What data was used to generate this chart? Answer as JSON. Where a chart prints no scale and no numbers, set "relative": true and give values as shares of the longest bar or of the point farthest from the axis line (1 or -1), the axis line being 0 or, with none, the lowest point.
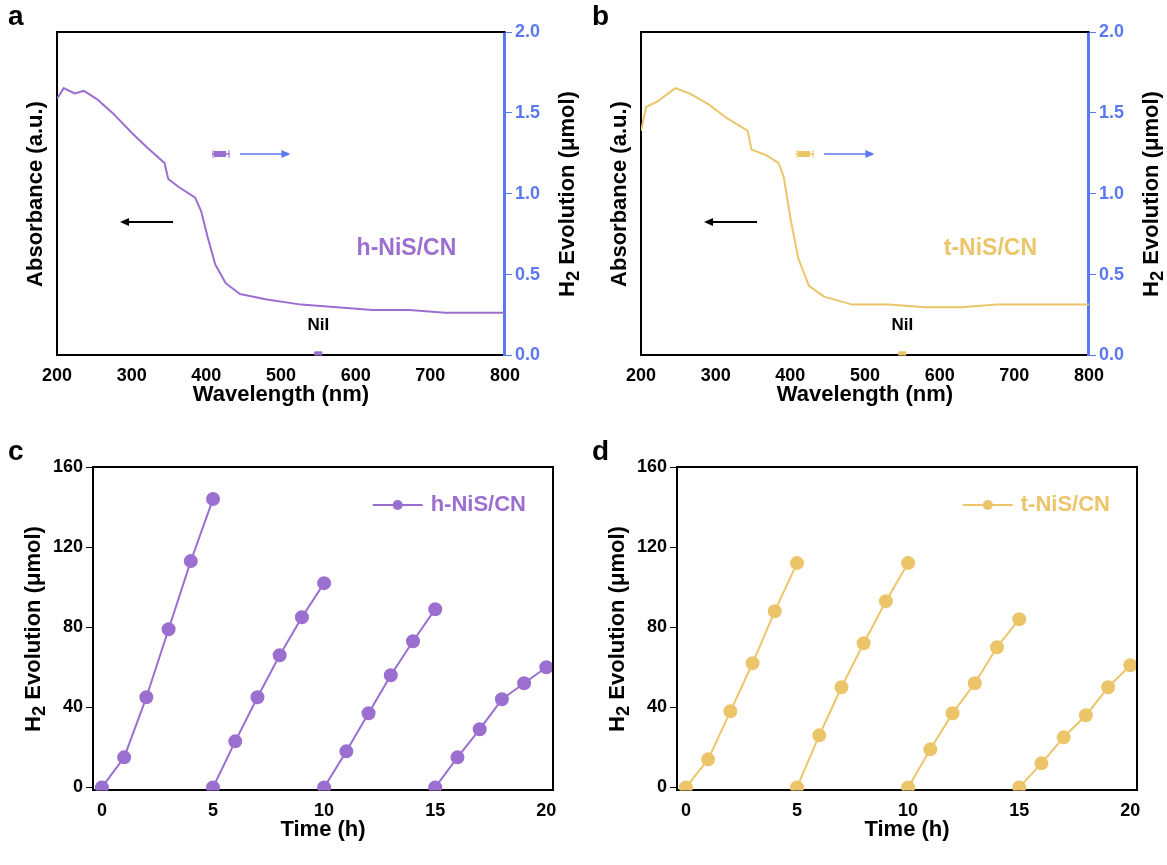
{
  "chart_data": [
    {
      "type": "line",
      "title": "a",
      "xlabel": "Wavelength (nm)",
      "ylabel": "Absorbance (a.u.)",
      "y2label": "H$_{2}$ Evolution (μmol)",
      "relative": true,
      "xlim": [
        200,
        800
      ],
      "xticks": [
        200,
        300,
        400,
        500,
        600,
        700,
        800
      ],
      "y2lim": [
        0,
        2
      ],
      "y2ticks": [
        {
          "value": 0,
          "label": "0.0"
        },
        {
          "value": 0.5,
          "label": "0.5"
        },
        {
          "value": 1,
          "label": "1.0"
        },
        {
          "value": 1.5,
          "label": "1.5"
        },
        {
          "value": 2,
          "label": "2.0"
        }
      ],
      "annotations": [
        {
          "text": "NiI",
          "x": 550,
          "y": 0
        }
      ],
      "series": [
        {
          "name": "h-NiS/CN",
          "color": "#9b6fd0",
          "marker": "none",
          "x": [
            200,
            209,
            224,
            236,
            253,
            277,
            301,
            320,
            344,
            349,
            363,
            385,
            393,
            402,
            412,
            426,
            445,
            479,
            527,
            575,
            623,
            672,
            720,
            800
          ],
          "values": [
            0.96,
            1.0,
            0.98,
            0.99,
            0.96,
            0.9,
            0.83,
            0.78,
            0.72,
            0.66,
            0.63,
            0.59,
            0.54,
            0.44,
            0.34,
            0.27,
            0.23,
            0.21,
            0.19,
            0.18,
            0.17,
            0.17,
            0.16,
            0.16
          ]
        },
        {
          "type": "scatter",
          "axis": "y2",
          "color": "#9b6fd0",
          "marker": "square",
          "x": [
            550
          ],
          "values": [
            0
          ]
        }
      ]
    },
    {
      "type": "line",
      "title": "b",
      "xlabel": "Wavelength (nm)",
      "ylabel": "Absorbance (a.u.)",
      "y2label": "H$_{2}$ Evolution (μmol)",
      "relative": true,
      "xlim": [
        200,
        800
      ],
      "xticks": [
        200,
        300,
        400,
        500,
        600,
        700,
        800
      ],
      "y2lim": [
        0,
        2
      ],
      "y2ticks": [
        {
          "value": 0,
          "label": "0.0"
        },
        {
          "value": 0.5,
          "label": "0.5"
        },
        {
          "value": 1,
          "label": "1.0"
        },
        {
          "value": 1.5,
          "label": "1.5"
        },
        {
          "value": 2,
          "label": "2.0"
        }
      ],
      "annotations": [
        {
          "text": "NiI",
          "x": 550,
          "y": 0
        }
      ],
      "series": [
        {
          "name": "t-NiS/CN",
          "color": "#ecc56a",
          "marker": "none",
          "x": [
            200,
            207,
            222,
            246,
            265,
            290,
            314,
            343,
            348,
            367,
            384,
            391,
            401,
            411,
            425,
            445,
            483,
            532,
            580,
            629,
            677,
            725,
            800
          ],
          "values": [
            0.84,
            0.93,
            0.95,
            1.0,
            0.98,
            0.94,
            0.89,
            0.84,
            0.77,
            0.75,
            0.72,
            0.67,
            0.5,
            0.36,
            0.26,
            0.22,
            0.19,
            0.19,
            0.18,
            0.18,
            0.19,
            0.19,
            0.19
          ]
        },
        {
          "type": "scatter",
          "axis": "y2",
          "color": "#ecc56a",
          "marker": "square",
          "x": [
            550
          ],
          "values": [
            0
          ]
        }
      ]
    },
    {
      "type": "line",
      "title": "c",
      "xlabel": "Time (h)",
      "ylabel": "H$_{2}$ Evolution (μmol)",
      "xlim": [
        -0.4,
        20.3
      ],
      "xticks": [
        0,
        5,
        10,
        15,
        20
      ],
      "ylim": [
        -1.5,
        160
      ],
      "yticks": [
        0,
        40,
        80,
        120,
        160
      ],
      "legend": "top right",
      "marker": "circle",
      "series": [
        {
          "name": "h-NiS/CN",
          "color": "#9b6fd0",
          "x": [
            0,
            1,
            2,
            3,
            4,
            5
          ],
          "values": [
            0,
            15,
            45,
            79,
            113,
            144
          ]
        },
        {
          "color": "#9b6fd0",
          "x": [
            5,
            6,
            7,
            8,
            9,
            10
          ],
          "values": [
            0,
            23,
            45,
            66,
            85,
            102
          ]
        },
        {
          "color": "#9b6fd0",
          "x": [
            10,
            11,
            12,
            13,
            14,
            15
          ],
          "values": [
            0,
            18,
            37,
            56,
            73,
            89
          ]
        },
        {
          "color": "#9b6fd0",
          "x": [
            15,
            16,
            17,
            18,
            19,
            20
          ],
          "values": [
            0,
            15,
            29,
            44,
            52,
            60
          ]
        }
      ]
    },
    {
      "type": "line",
      "title": "d",
      "xlabel": "Time (h)",
      "ylabel": "H$_{2}$ Evolution (μmol)",
      "xlim": [
        -0.4,
        20.3
      ],
      "xticks": [
        0,
        5,
        10,
        15,
        20
      ],
      "ylim": [
        -1.5,
        160
      ],
      "yticks": [
        0,
        40,
        80,
        120,
        160
      ],
      "legend": "top right",
      "marker": "circle",
      "series": [
        {
          "name": "t-NiS/CN",
          "color": "#ecc56a",
          "x": [
            0,
            1,
            2,
            3,
            4,
            5
          ],
          "values": [
            0,
            14,
            38,
            62,
            88,
            112
          ]
        },
        {
          "color": "#ecc56a",
          "x": [
            5,
            6,
            7,
            8,
            9,
            10
          ],
          "values": [
            0,
            26,
            50,
            72,
            93,
            112
          ]
        },
        {
          "color": "#ecc56a",
          "x": [
            10,
            11,
            12,
            13,
            14,
            15
          ],
          "values": [
            0,
            19,
            37,
            52,
            70,
            84
          ]
        },
        {
          "color": "#ecc56a",
          "x": [
            15,
            16,
            17,
            18,
            19,
            20
          ],
          "values": [
            0,
            12,
            25,
            36,
            50,
            61
          ]
        }
      ]
    }
  ]
}
